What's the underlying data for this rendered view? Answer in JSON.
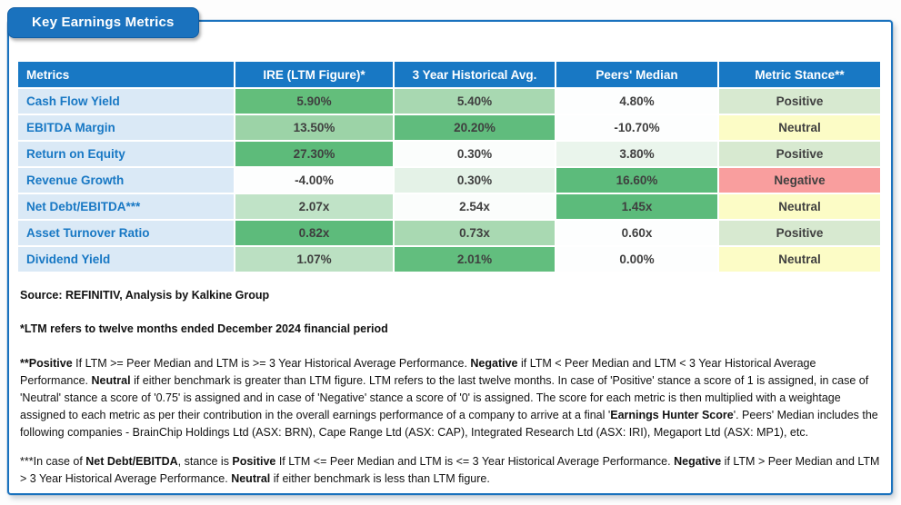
{
  "title": "Key Earnings Metrics",
  "colors": {
    "brand_blue": "#1a72be",
    "header_bg": "#1878c4",
    "metric_col_bg": "#dae9f6",
    "metric_text": "#1878c4",
    "value_text": "#3f3f3f",
    "strong_green": "#5dbb7b",
    "positive_bg": "#d7e9d0",
    "neutral_bg": "#fcfcc6",
    "negative_bg": "#f99e9e"
  },
  "table": {
    "columns": [
      "Metrics",
      "IRE (LTM Figure)*",
      "3 Year Historical Avg.",
      "Peers' Median",
      "Metric Stance**"
    ],
    "rows": [
      {
        "metric": "Cash Flow Yield",
        "cells": [
          {
            "v": "5.90%",
            "bg": "#63be7b"
          },
          {
            "v": "5.40%",
            "bg": "#a8d8b1"
          },
          {
            "v": "4.80%",
            "bg": "#fdfefe"
          }
        ],
        "stance": {
          "label": "Positive",
          "bg": "#d7e9d0"
        }
      },
      {
        "metric": "EBITDA Margin",
        "cells": [
          {
            "v": "13.50%",
            "bg": "#9cd3a7"
          },
          {
            "v": "20.20%",
            "bg": "#60bc7d"
          },
          {
            "v": "-10.70%",
            "bg": "#fdfefe"
          }
        ],
        "stance": {
          "label": "Neutral",
          "bg": "#fcfcc6"
        }
      },
      {
        "metric": "Return on Equity",
        "cells": [
          {
            "v": "27.30%",
            "bg": "#5dbb7a"
          },
          {
            "v": "0.30%",
            "bg": "#fbfdfc"
          },
          {
            "v": "3.80%",
            "bg": "#eaf5ec"
          }
        ],
        "stance": {
          "label": "Positive",
          "bg": "#d7e9d0"
        }
      },
      {
        "metric": "Revenue Growth",
        "cells": [
          {
            "v": "-4.00%",
            "bg": "#fdfefe"
          },
          {
            "v": "0.30%",
            "bg": "#e4f2e7"
          },
          {
            "v": "16.60%",
            "bg": "#5cbb7b"
          }
        ],
        "stance": {
          "label": "Negative",
          "bg": "#f99e9e"
        }
      },
      {
        "metric": "Net Debt/EBITDA***",
        "cells": [
          {
            "v": "2.07x",
            "bg": "#c0e3c7"
          },
          {
            "v": "2.54x",
            "bg": "#fbfdfc"
          },
          {
            "v": "1.45x",
            "bg": "#5cbb7b"
          }
        ],
        "stance": {
          "label": "Neutral",
          "bg": "#fcfcc6"
        }
      },
      {
        "metric": "Asset Turnover Ratio",
        "cells": [
          {
            "v": "0.82x",
            "bg": "#5dbb7b"
          },
          {
            "v": "0.73x",
            "bg": "#a9d9b2"
          },
          {
            "v": "0.60x",
            "bg": "#fdfefe"
          }
        ],
        "stance": {
          "label": "Positive",
          "bg": "#d7e9d0"
        }
      },
      {
        "metric": "Dividend Yield",
        "cells": [
          {
            "v": "1.07%",
            "bg": "#bbe0c2"
          },
          {
            "v": "2.01%",
            "bg": "#62be7e"
          },
          {
            "v": "0.00%",
            "bg": "#fdfefe"
          }
        ],
        "stance": {
          "label": "Neutral",
          "bg": "#fcfcc6"
        }
      }
    ]
  },
  "footnotes": {
    "source": [
      {
        "t": "Source: REFINITIV, Analysis by Kalkine Group",
        "b": true
      }
    ],
    "ltm": [
      {
        "t": "*LTM refers to twelve months ended December 2024 financial period",
        "b": true
      }
    ],
    "stance_method": [
      {
        "t": "**Positive",
        "b": true
      },
      {
        "t": " If LTM >= Peer Median and LTM is >= 3 Year Historical Average Performance. ",
        "b": false
      },
      {
        "t": "Negative",
        "b": true
      },
      {
        "t": " if LTM < Peer Median and LTM < 3 Year Historical Average Performance. ",
        "b": false
      },
      {
        "t": "Neutral",
        "b": true
      },
      {
        "t": " if either benchmark is greater than LTM figure. LTM refers to the last twelve months. In case of 'Positive' stance a score of 1 is assigned, in case of 'Neutral' stance a score of '0.75' is assigned and in case of 'Negative' stance a score of '0' is assigned. The score for each metric is then multiplied with a weightage assigned to each metric as per their contribution in the overall earnings performance of a company to arrive at a final '",
        "b": false
      },
      {
        "t": "Earnings Hunter Score",
        "b": true
      },
      {
        "t": "'. Peers' Median includes the following companies - BrainChip Holdings Ltd  (ASX: BRN), Cape Range Ltd (ASX: CAP), Integrated Research Ltd (ASX: IRI), Megaport Ltd (ASX: MP1), etc.",
        "b": false
      }
    ],
    "net_debt_method": [
      {
        "t": "***In case of ",
        "b": false
      },
      {
        "t": "Net Debt/EBITDA",
        "b": true
      },
      {
        "t": ", stance is ",
        "b": false
      },
      {
        "t": "Positive",
        "b": true
      },
      {
        "t": " If LTM <= Peer Median and LTM is <= 3 Year Historical Average Performance. ",
        "b": false
      },
      {
        "t": "Negative",
        "b": true
      },
      {
        "t": " if LTM > Peer Median and LTM > 3 Year Historical Average Performance. ",
        "b": false
      },
      {
        "t": "Neutral",
        "b": true
      },
      {
        "t": " if either benchmark is less than LTM figure.",
        "b": false
      }
    ]
  },
  "chart_data": {
    "type": "table",
    "title": "Key Earnings Metrics",
    "columns": [
      "Metrics",
      "IRE (LTM Figure)*",
      "3 Year Historical Avg.",
      "Peers' Median",
      "Metric Stance**"
    ],
    "rows": [
      [
        "Cash Flow Yield",
        "5.90%",
        "5.40%",
        "4.80%",
        "Positive"
      ],
      [
        "EBITDA Margin",
        "13.50%",
        "20.20%",
        "-10.70%",
        "Neutral"
      ],
      [
        "Return on Equity",
        "27.30%",
        "0.30%",
        "3.80%",
        "Positive"
      ],
      [
        "Revenue Growth",
        "-4.00%",
        "0.30%",
        "16.60%",
        "Negative"
      ],
      [
        "Net Debt/EBITDA***",
        "2.07x",
        "2.54x",
        "1.45x",
        "Neutral"
      ],
      [
        "Asset Turnover Ratio",
        "0.82x",
        "0.73x",
        "0.60x",
        "Positive"
      ],
      [
        "Dividend Yield",
        "1.07%",
        "2.01%",
        "0.00%",
        "Neutral"
      ]
    ]
  }
}
